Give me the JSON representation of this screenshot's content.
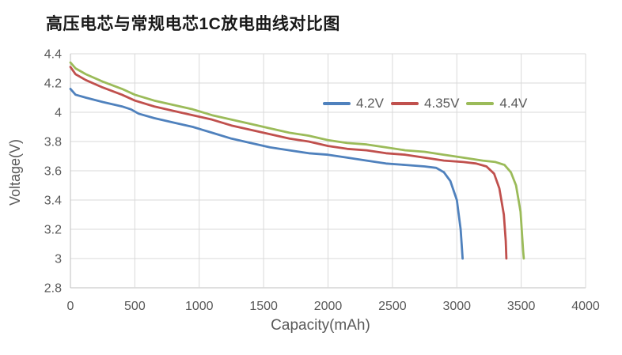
{
  "title": "高压电芯与常规电芯1C放电曲线对比图",
  "colors": {
    "background": "#FFFFFF",
    "grid": "#D9D9D9",
    "axis_line": "#BFBFBF",
    "tick_text": "#595959",
    "axis_title_text": "#595959",
    "title_text": "#1A1A1A",
    "series_blue": "#4F81BD",
    "series_red": "#C0504D",
    "series_green": "#9BBB59"
  },
  "chart_data": {
    "type": "line",
    "title": "高压电芯与常规电芯1C放电曲线对比图",
    "xlabel": "Capacity(mAh)",
    "ylabel": "Voltage(V)",
    "xlim": [
      0,
      4000
    ],
    "ylim": [
      2.8,
      4.4
    ],
    "x_ticks": [
      0,
      500,
      1000,
      1500,
      2000,
      2500,
      3000,
      3500,
      4000
    ],
    "y_ticks": [
      2.8,
      3,
      3.2,
      3.4,
      3.6,
      3.8,
      4,
      4.2,
      4.4
    ],
    "grid": true,
    "legend_position": "inside-upper-right",
    "series": [
      {
        "name": "4.2V",
        "color": "#4F81BD",
        "points": [
          [
            0,
            4.16
          ],
          [
            40,
            4.12
          ],
          [
            120,
            4.1
          ],
          [
            250,
            4.07
          ],
          [
            400,
            4.04
          ],
          [
            470,
            4.02
          ],
          [
            530,
            3.99
          ],
          [
            650,
            3.96
          ],
          [
            800,
            3.93
          ],
          [
            950,
            3.9
          ],
          [
            1100,
            3.86
          ],
          [
            1250,
            3.82
          ],
          [
            1400,
            3.79
          ],
          [
            1550,
            3.76
          ],
          [
            1700,
            3.74
          ],
          [
            1850,
            3.72
          ],
          [
            2000,
            3.71
          ],
          [
            2150,
            3.69
          ],
          [
            2300,
            3.67
          ],
          [
            2450,
            3.65
          ],
          [
            2600,
            3.64
          ],
          [
            2750,
            3.63
          ],
          [
            2840,
            3.62
          ],
          [
            2900,
            3.59
          ],
          [
            2950,
            3.53
          ],
          [
            3000,
            3.4
          ],
          [
            3030,
            3.2
          ],
          [
            3045,
            3.0
          ]
        ]
      },
      {
        "name": "4.35V",
        "color": "#C0504D",
        "points": [
          [
            0,
            4.31
          ],
          [
            40,
            4.26
          ],
          [
            120,
            4.22
          ],
          [
            250,
            4.17
          ],
          [
            400,
            4.12
          ],
          [
            500,
            4.08
          ],
          [
            650,
            4.04
          ],
          [
            800,
            4.01
          ],
          [
            950,
            3.98
          ],
          [
            1100,
            3.95
          ],
          [
            1250,
            3.91
          ],
          [
            1400,
            3.88
          ],
          [
            1550,
            3.85
          ],
          [
            1700,
            3.82
          ],
          [
            1850,
            3.8
          ],
          [
            2000,
            3.77
          ],
          [
            2150,
            3.75
          ],
          [
            2300,
            3.74
          ],
          [
            2450,
            3.72
          ],
          [
            2600,
            3.71
          ],
          [
            2750,
            3.69
          ],
          [
            2900,
            3.67
          ],
          [
            3050,
            3.66
          ],
          [
            3150,
            3.65
          ],
          [
            3230,
            3.63
          ],
          [
            3290,
            3.58
          ],
          [
            3330,
            3.48
          ],
          [
            3365,
            3.3
          ],
          [
            3380,
            3.12
          ],
          [
            3385,
            3.0
          ]
        ]
      },
      {
        "name": "4.4V",
        "color": "#9BBB59",
        "points": [
          [
            0,
            4.34
          ],
          [
            40,
            4.3
          ],
          [
            120,
            4.26
          ],
          [
            250,
            4.21
          ],
          [
            400,
            4.16
          ],
          [
            500,
            4.12
          ],
          [
            650,
            4.08
          ],
          [
            800,
            4.05
          ],
          [
            950,
            4.02
          ],
          [
            1100,
            3.98
          ],
          [
            1250,
            3.95
          ],
          [
            1400,
            3.92
          ],
          [
            1550,
            3.89
          ],
          [
            1700,
            3.86
          ],
          [
            1850,
            3.84
          ],
          [
            2000,
            3.81
          ],
          [
            2150,
            3.79
          ],
          [
            2300,
            3.78
          ],
          [
            2450,
            3.76
          ],
          [
            2600,
            3.74
          ],
          [
            2750,
            3.73
          ],
          [
            2900,
            3.71
          ],
          [
            3050,
            3.69
          ],
          [
            3200,
            3.67
          ],
          [
            3300,
            3.66
          ],
          [
            3370,
            3.64
          ],
          [
            3420,
            3.59
          ],
          [
            3460,
            3.5
          ],
          [
            3495,
            3.32
          ],
          [
            3515,
            3.05
          ],
          [
            3520,
            3.0
          ]
        ]
      }
    ]
  }
}
